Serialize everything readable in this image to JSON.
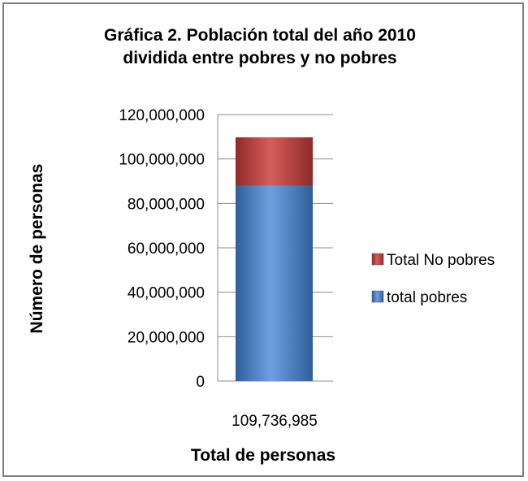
{
  "chart_data": {
    "type": "bar",
    "stacked": true,
    "title": [
      "Gráfica 2. Población total del año 2010",
      "dividida entre pobres y no pobres"
    ],
    "xlabel": "Total de personas",
    "ylabel": "Número de personas",
    "categories": [
      "109,736,985"
    ],
    "series": [
      {
        "name": "total pobres",
        "values": [
          88000000
        ],
        "color": "#4f81bd"
      },
      {
        "name": "Total No pobres",
        "values": [
          21736985
        ],
        "color": "#c0504d"
      }
    ],
    "ylim": [
      0,
      120000000
    ],
    "yticks": [
      "0",
      "20,000,000",
      "40,000,000",
      "60,000,000",
      "80,000,000",
      "100,000,000",
      "120,000,000"
    ],
    "grid": true,
    "legend": "right"
  }
}
